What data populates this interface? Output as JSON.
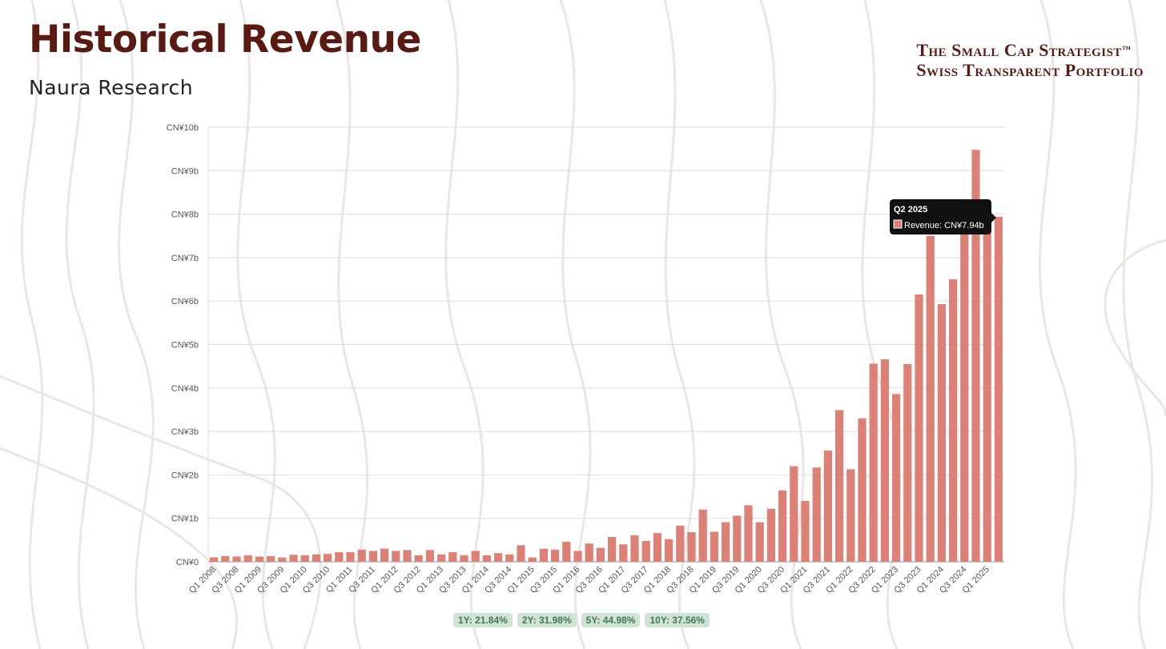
{
  "header": {
    "title": "Historical Revenue",
    "subtitle": "Naura Research",
    "brand_line1": "The Small Cap Strategist",
    "brand_tm": "™",
    "brand_line2": "Swiss Transparent Portfolio"
  },
  "colors": {
    "bar": "#dd8076",
    "title": "#5a1a12",
    "badge_bg": "#cfe3d6",
    "badge_text": "#3f7a55"
  },
  "tooltip": {
    "title": "Q2 2025",
    "label": "Revenue: CN¥7.94b"
  },
  "growth_badges": [
    "1Y: 21.84%",
    "2Y: 31.98%",
    "5Y: 44.98%",
    "10Y: 37.56%"
  ],
  "chart_data": {
    "type": "bar",
    "title": "Historical Revenue",
    "xlabel": "",
    "ylabel": "Revenue",
    "ylim": [
      0,
      10
    ],
    "y_ticks": [
      "CN¥0",
      "CN¥1b",
      "CN¥2b",
      "CN¥3b",
      "CN¥4b",
      "CN¥5b",
      "CN¥6b",
      "CN¥7b",
      "CN¥8b",
      "CN¥9b",
      "CN¥10b"
    ],
    "x_tick_labels": [
      "Q1 2008",
      "Q3 2008",
      "Q1 2009",
      "Q3 2009",
      "Q1 2010",
      "Q3 2010",
      "Q1 2011",
      "Q3 2011",
      "Q1 2012",
      "Q3 2012",
      "Q1 2013",
      "Q3 2013",
      "Q1 2014",
      "Q3 2014",
      "Q1 2015",
      "Q3 2015",
      "Q1 2016",
      "Q3 2016",
      "Q1 2017",
      "Q3 2017",
      "Q1 2018",
      "Q3 2018",
      "Q1 2019",
      "Q3 2019",
      "Q1 2020",
      "Q3 2020",
      "Q1 2021",
      "Q3 2021",
      "Q1 2022",
      "Q3 2022",
      "Q1 2023",
      "Q3 2023",
      "Q1 2024",
      "Q3 2024",
      "Q1 2025"
    ],
    "categories": [
      "Q1 2008",
      "Q2 2008",
      "Q3 2008",
      "Q4 2008",
      "Q1 2009",
      "Q2 2009",
      "Q3 2009",
      "Q4 2009",
      "Q1 2010",
      "Q2 2010",
      "Q3 2010",
      "Q4 2010",
      "Q1 2011",
      "Q2 2011",
      "Q3 2011",
      "Q4 2011",
      "Q1 2012",
      "Q2 2012",
      "Q3 2012",
      "Q4 2012",
      "Q1 2013",
      "Q2 2013",
      "Q3 2013",
      "Q4 2013",
      "Q1 2014",
      "Q2 2014",
      "Q3 2014",
      "Q4 2014",
      "Q1 2015",
      "Q2 2015",
      "Q3 2015",
      "Q4 2015",
      "Q1 2016",
      "Q2 2016",
      "Q3 2016",
      "Q4 2016",
      "Q1 2017",
      "Q2 2017",
      "Q3 2017",
      "Q4 2017",
      "Q1 2018",
      "Q2 2018",
      "Q3 2018",
      "Q4 2018",
      "Q1 2019",
      "Q2 2019",
      "Q3 2019",
      "Q4 2019",
      "Q1 2020",
      "Q2 2020",
      "Q3 2020",
      "Q4 2020",
      "Q1 2021",
      "Q2 2021",
      "Q3 2021",
      "Q4 2021",
      "Q1 2022",
      "Q2 2022",
      "Q3 2022",
      "Q4 2022",
      "Q1 2023",
      "Q2 2023",
      "Q3 2023",
      "Q4 2023",
      "Q1 2024",
      "Q2 2024",
      "Q3 2024",
      "Q4 2024",
      "Q1 2025",
      "Q2 2025"
    ],
    "series": [
      {
        "name": "Revenue",
        "unit": "CN¥ billions",
        "values": [
          0.1,
          0.13,
          0.12,
          0.15,
          0.12,
          0.13,
          0.1,
          0.16,
          0.15,
          0.17,
          0.18,
          0.22,
          0.22,
          0.28,
          0.25,
          0.3,
          0.25,
          0.27,
          0.15,
          0.27,
          0.17,
          0.22,
          0.15,
          0.25,
          0.15,
          0.2,
          0.17,
          0.38,
          0.1,
          0.3,
          0.28,
          0.46,
          0.25,
          0.42,
          0.32,
          0.57,
          0.4,
          0.61,
          0.48,
          0.66,
          0.52,
          0.83,
          0.68,
          1.2,
          0.69,
          0.91,
          1.06,
          1.3,
          0.91,
          1.22,
          1.64,
          2.2,
          1.4,
          2.17,
          2.56,
          3.49,
          2.13,
          3.3,
          4.56,
          4.66,
          3.86,
          4.55,
          6.15,
          7.5,
          5.93,
          6.5,
          8.02,
          9.48,
          8.2,
          7.94
        ]
      }
    ]
  }
}
